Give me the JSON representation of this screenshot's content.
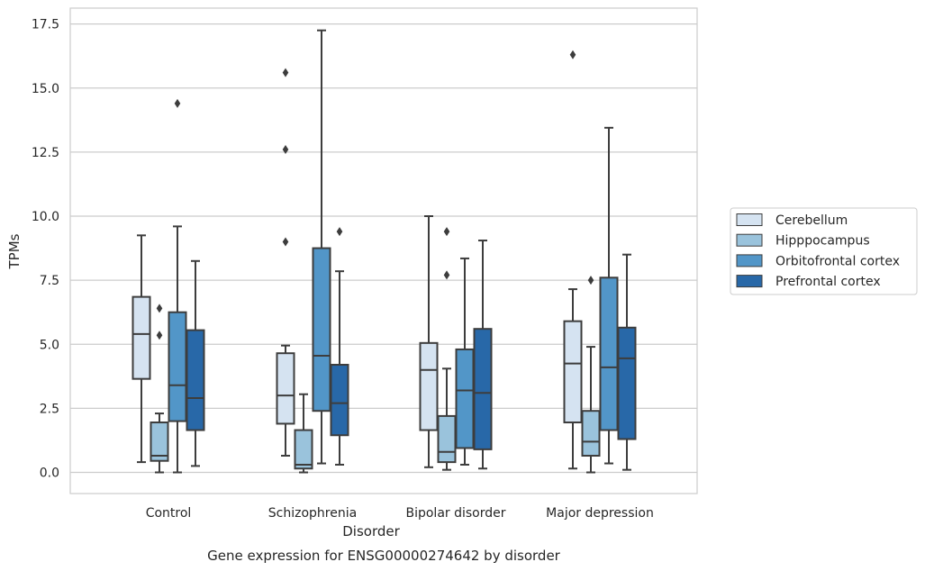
{
  "chart_data": {
    "type": "box",
    "title": "",
    "caption": "Gene expression for ENSG00000274642 by disorder",
    "xlabel": "Disorder",
    "ylabel": "TPMs",
    "ylim": [
      -0.8,
      18.2
    ],
    "yticks": [
      "0.0",
      "2.5",
      "5.0",
      "7.5",
      "10.0",
      "12.5",
      "15.0",
      "17.5"
    ],
    "grid": "horizontal",
    "legend_position": "right",
    "categories": [
      "Control",
      "Schizophrenia",
      "Bipolar disorder",
      "Major depression"
    ],
    "series": [
      {
        "name": "Cerebellum",
        "color": "#d5e3f1",
        "boxes": [
          {
            "whisker_low": 0.4,
            "q1": 3.65,
            "median": 5.4,
            "q3": 6.85,
            "whisker_high": 9.25,
            "outliers": []
          },
          {
            "whisker_low": 0.65,
            "q1": 1.9,
            "median": 3.0,
            "q3": 4.65,
            "whisker_high": 4.95,
            "outliers": [
              9.0,
              12.6,
              15.6
            ]
          },
          {
            "whisker_low": 0.2,
            "q1": 1.65,
            "median": 4.0,
            "q3": 5.05,
            "whisker_high": 10.0,
            "outliers": []
          },
          {
            "whisker_low": 0.15,
            "q1": 1.95,
            "median": 4.25,
            "q3": 5.9,
            "whisker_high": 7.15,
            "outliers": [
              16.3
            ]
          }
        ]
      },
      {
        "name": "Hipppocampus",
        "color": "#9ac3dc",
        "boxes": [
          {
            "whisker_low": 0.0,
            "q1": 0.45,
            "median": 0.65,
            "q3": 1.95,
            "whisker_high": 2.3,
            "outliers": [
              5.35,
              6.4
            ]
          },
          {
            "whisker_low": 0.0,
            "q1": 0.15,
            "median": 0.3,
            "q3": 1.65,
            "whisker_high": 3.05,
            "outliers": []
          },
          {
            "whisker_low": 0.1,
            "q1": 0.4,
            "median": 0.8,
            "q3": 2.2,
            "whisker_high": 4.05,
            "outliers": [
              7.7,
              9.4
            ]
          },
          {
            "whisker_low": 0.0,
            "q1": 0.65,
            "median": 1.2,
            "q3": 2.4,
            "whisker_high": 4.9,
            "outliers": [
              7.5
            ]
          }
        ]
      },
      {
        "name": "Orbitofrontal cortex",
        "color": "#5296c8",
        "boxes": [
          {
            "whisker_low": 0.0,
            "q1": 2.0,
            "median": 3.4,
            "q3": 6.25,
            "whisker_high": 9.6,
            "outliers": [
              14.4
            ]
          },
          {
            "whisker_low": 0.35,
            "q1": 2.4,
            "median": 4.55,
            "q3": 8.75,
            "whisker_high": 17.25,
            "outliers": []
          },
          {
            "whisker_low": 0.3,
            "q1": 0.95,
            "median": 3.2,
            "q3": 4.8,
            "whisker_high": 8.35,
            "outliers": []
          },
          {
            "whisker_low": 0.35,
            "q1": 1.65,
            "median": 4.1,
            "q3": 7.6,
            "whisker_high": 13.45,
            "outliers": []
          }
        ]
      },
      {
        "name": "Prefrontal cortex",
        "color": "#2868a8",
        "boxes": [
          {
            "whisker_low": 0.25,
            "q1": 1.65,
            "median": 2.9,
            "q3": 5.55,
            "whisker_high": 8.25,
            "outliers": []
          },
          {
            "whisker_low": 0.3,
            "q1": 1.45,
            "median": 2.7,
            "q3": 4.2,
            "whisker_high": 7.85,
            "outliers": [
              9.4
            ]
          },
          {
            "whisker_low": 0.15,
            "q1": 0.9,
            "median": 3.1,
            "q3": 5.6,
            "whisker_high": 9.05,
            "outliers": []
          },
          {
            "whisker_low": 0.1,
            "q1": 1.3,
            "median": 4.45,
            "q3": 5.65,
            "whisker_high": 8.5,
            "outliers": []
          }
        ]
      }
    ]
  }
}
